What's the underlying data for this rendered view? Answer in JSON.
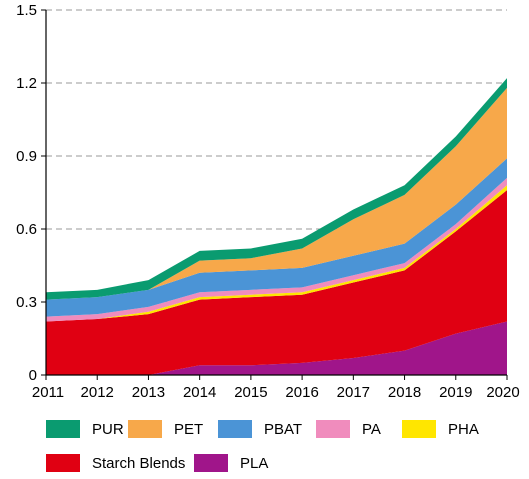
{
  "chart_data": {
    "type": "area",
    "stacked": true,
    "x": [
      "2011",
      "2012",
      "2013",
      "2014",
      "2015",
      "2016",
      "2017",
      "2018",
      "2019",
      "2020"
    ],
    "ylim": [
      0,
      1.5
    ],
    "yticks": [
      "0",
      "0.3",
      "0.6",
      "0.9",
      "1.2",
      "1.5"
    ],
    "grid": "horizontal dashed",
    "legend_position": "bottom",
    "series": [
      {
        "name": "PLA",
        "color": "#a0158a",
        "values": [
          0.0,
          0.0,
          0.0,
          0.04,
          0.04,
          0.05,
          0.07,
          0.1,
          0.17,
          0.22
        ]
      },
      {
        "name": "Starch Blends",
        "color": "#e00012",
        "values": [
          0.22,
          0.23,
          0.25,
          0.27,
          0.28,
          0.28,
          0.31,
          0.33,
          0.42,
          0.54
        ]
      },
      {
        "name": "PHA",
        "color": "#ffe600",
        "values": [
          0.0,
          0.0,
          0.01,
          0.01,
          0.01,
          0.01,
          0.01,
          0.01,
          0.01,
          0.02
        ]
      },
      {
        "name": "PA",
        "color": "#f08cbd",
        "values": [
          0.02,
          0.02,
          0.02,
          0.02,
          0.02,
          0.02,
          0.02,
          0.02,
          0.02,
          0.03
        ]
      },
      {
        "name": "PBAT",
        "color": "#4b94d6",
        "values": [
          0.07,
          0.07,
          0.07,
          0.08,
          0.08,
          0.08,
          0.08,
          0.08,
          0.08,
          0.08
        ]
      },
      {
        "name": "PET",
        "color": "#f7a84a",
        "values": [
          0.0,
          0.0,
          0.0,
          0.05,
          0.05,
          0.08,
          0.15,
          0.2,
          0.24,
          0.29
        ]
      },
      {
        "name": "PUR",
        "color": "#0a9b70",
        "values": [
          0.03,
          0.03,
          0.04,
          0.04,
          0.04,
          0.04,
          0.04,
          0.04,
          0.04,
          0.04
        ]
      }
    ]
  },
  "legend": [
    {
      "name": "PUR",
      "color": "#0a9b70"
    },
    {
      "name": "PET",
      "color": "#f7a84a"
    },
    {
      "name": "PBAT",
      "color": "#4b94d6"
    },
    {
      "name": "PA",
      "color": "#f08cbd"
    },
    {
      "name": "PHA",
      "color": "#ffe600"
    },
    {
      "name": "Starch Blends",
      "color": "#e00012"
    },
    {
      "name": "PLA",
      "color": "#a0158a"
    }
  ]
}
